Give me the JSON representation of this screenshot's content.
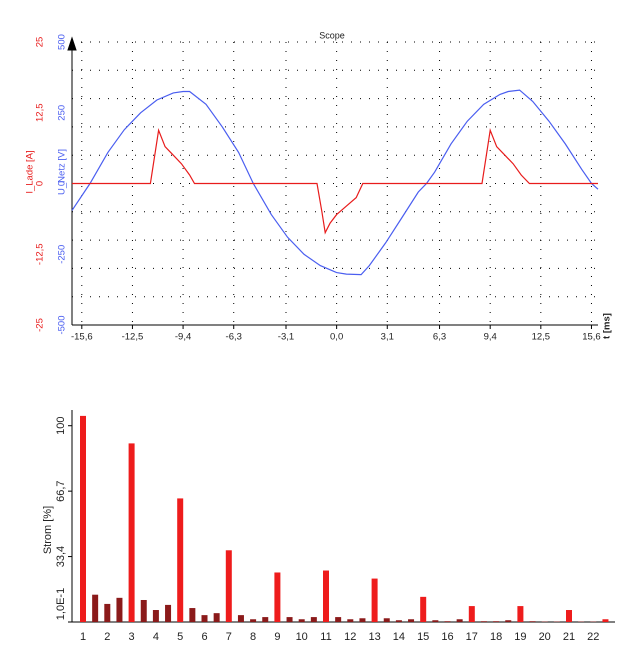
{
  "chart_data": [
    {
      "type": "line",
      "title": "Scope",
      "xlabel": "t [ms]",
      "ylabel": "U_Netz [V]",
      "y2label": "I_Lade [A]",
      "xlim": [
        -16.2,
        16
      ],
      "ylim": [
        -500,
        500
      ],
      "y2lim": [
        -25,
        25
      ],
      "xticks": [
        {
          "value": -15.6,
          "label": "-15,6"
        },
        {
          "value": -12.5,
          "label": "-12,5"
        },
        {
          "value": -9.4,
          "label": "-9,4"
        },
        {
          "value": -6.3,
          "label": "-6,3"
        },
        {
          "value": -3.1,
          "label": "-3,1"
        },
        {
          "value": 0,
          "label": "0,0"
        },
        {
          "value": 3.1,
          "label": "3,1"
        },
        {
          "value": 6.3,
          "label": "6,3"
        },
        {
          "value": 9.4,
          "label": "9,4"
        },
        {
          "value": 12.5,
          "label": "12,5"
        },
        {
          "value": 15.6,
          "label": "15,6"
        }
      ],
      "yticks": [
        -500,
        -250,
        0,
        250,
        500
      ],
      "y2ticks": [
        -25,
        {
          "value": -12.5,
          "label": "-12,5"
        },
        0,
        {
          "value": 12.5,
          "label": "12,5"
        },
        25
      ],
      "ygrid": [
        -400,
        -300,
        -200,
        -100,
        0,
        100,
        200,
        300,
        400
      ],
      "grid": true,
      "series": [
        {
          "color": "#4a5ef0",
          "axis": "y",
          "x": [
            -16.2,
            -15.1,
            -14,
            -13,
            -12,
            -11,
            -10,
            -9.4,
            -9,
            -8,
            -7,
            -6,
            -5.1,
            -4,
            -3,
            -2,
            -1,
            0,
            0.6,
            1.5,
            2,
            3,
            4,
            5,
            5.5,
            6,
            7,
            8,
            9,
            10,
            10.5,
            11.2,
            12,
            13,
            14,
            15,
            15.6,
            16
          ],
          "values": [
            -95,
            0,
            110,
            190,
            250,
            295,
            320,
            325,
            325,
            280,
            200,
            110,
            0,
            -110,
            -190,
            -250,
            -290,
            -315,
            -320,
            -322,
            -290,
            -210,
            -120,
            -30,
            0,
            40,
            140,
            220,
            280,
            315,
            325,
            330,
            290,
            220,
            140,
            50,
            0,
            -20
          ]
        },
        {
          "color": "#e81c1c",
          "axis": "y2",
          "x": [
            -16.2,
            -11.4,
            -10.9,
            -10.5,
            -10,
            -9.5,
            -9,
            -8.7,
            -1.2,
            -0.9,
            -0.7,
            -0.4,
            0,
            0.6,
            1.2,
            1.6,
            8.9,
            9.4,
            9.8,
            10.3,
            10.8,
            11.3,
            11.8,
            16
          ],
          "values": [
            0,
            0,
            9.4,
            6.5,
            5,
            3.5,
            1.5,
            0,
            0,
            -5,
            -8.7,
            -7,
            -5.5,
            -4,
            -2.5,
            0,
            0,
            9.4,
            6.5,
            5,
            3.5,
            1.5,
            0,
            0
          ]
        }
      ]
    },
    {
      "type": "bar",
      "ylabel": "Strom [%]",
      "ylim": [
        0.1,
        108
      ],
      "yticks": [
        {
          "value": 0.1,
          "label": "1,0E-1"
        },
        {
          "value": 33.4,
          "label": "33,4"
        },
        {
          "value": 66.7,
          "label": "66,7"
        },
        100
      ],
      "categories": [
        "1",
        null,
        "2",
        null,
        "3",
        null,
        "4",
        null,
        "5",
        null,
        "6",
        null,
        "7",
        null,
        "8",
        null,
        "9",
        null,
        "10",
        null,
        "11",
        null,
        "12",
        null,
        "13",
        null,
        "14",
        null,
        "15",
        null,
        "16",
        null,
        "17",
        null,
        "18",
        null,
        "19",
        null,
        "20",
        null,
        "21",
        null,
        "22",
        null
      ],
      "values": [
        105,
        14,
        9.3,
        12.4,
        91,
        11.3,
        6.2,
        8.8,
        63,
        7.2,
        3.6,
        4.6,
        36.6,
        3.6,
        1.5,
        2.6,
        25.3,
        2.6,
        1.5,
        2.6,
        26.3,
        2.6,
        1.5,
        2,
        22.2,
        2,
        1,
        1.5,
        12.9,
        1,
        0.5,
        1.5,
        8.2,
        0.5,
        0.5,
        1,
        8.2,
        0.5,
        0.3,
        0.3,
        6.2,
        0.3,
        0.3,
        1.5
      ],
      "colors": [
        "#ee1c1c",
        "#8b1a1a",
        "#8b1a1a",
        "#8b1a1a",
        "#ee1c1c",
        "#8b1a1a",
        "#8b1a1a",
        "#8b1a1a",
        "#ee1c1c",
        "#8b1a1a",
        "#8b1a1a",
        "#8b1a1a",
        "#ee1c1c",
        "#8b1a1a",
        "#8b1a1a",
        "#8b1a1a",
        "#ee1c1c",
        "#8b1a1a",
        "#8b1a1a",
        "#8b1a1a",
        "#ee1c1c",
        "#8b1a1a",
        "#8b1a1a",
        "#8b1a1a",
        "#ee1c1c",
        "#8b1a1a",
        "#8b1a1a",
        "#8b1a1a",
        "#ee1c1c",
        "#8b1a1a",
        "#8b1a1a",
        "#8b1a1a",
        "#ee1c1c",
        "#8b1a1a",
        "#8b1a1a",
        "#8b1a1a",
        "#ee1c1c",
        "#8b1a1a",
        "#8b1a1a",
        "#8b1a1a",
        "#ee1c1c",
        "#8b1a1a",
        "#8b1a1a",
        "#ee1c1c"
      ]
    }
  ]
}
